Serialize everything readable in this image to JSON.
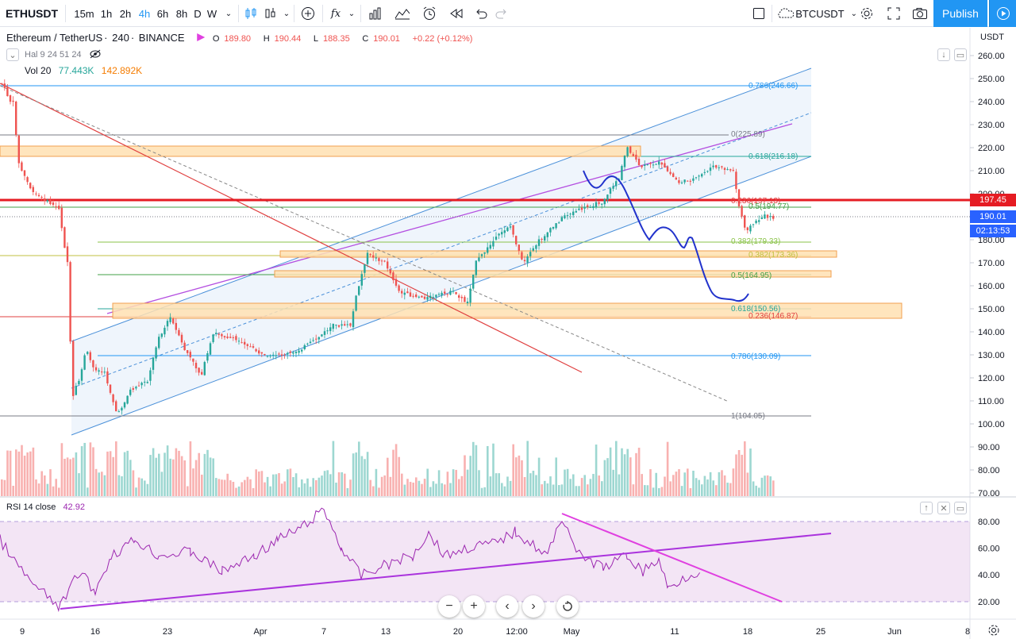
{
  "toolbar": {
    "symbol": "ETHUSDT",
    "intervals": [
      "15m",
      "1h",
      "2h",
      "4h",
      "6h",
      "8h",
      "D",
      "W"
    ],
    "active_interval": "4h",
    "compare_symbol": "BTCUSDT",
    "publish_label": "Publish"
  },
  "legend": {
    "pair": "Ethereum / TetherUS",
    "interval": "240",
    "exchange": "BINANCE",
    "open_label": "O",
    "open": "189.80",
    "high_label": "H",
    "high": "190.44",
    "low_label": "L",
    "low": "188.35",
    "close_label": "C",
    "close": "190.01",
    "change": "+0.22 (+0.12%)",
    "halving": "Hal 9 24 51 24",
    "vol_label": "Vol 20",
    "vol_value": "77.443K",
    "vol_ma": "142.892K",
    "rsi_label": "RSI 14 close",
    "rsi_value": "42.92"
  },
  "price_scale": {
    "currency": "USDT",
    "ticks": [
      "260.00",
      "250.00",
      "240.00",
      "230.00",
      "220.00",
      "210.00",
      "200.00",
      "190.00",
      "180.00",
      "170.00",
      "160.00",
      "150.00",
      "140.00",
      "130.00",
      "120.00",
      "110.00",
      "100.00",
      "90.00",
      "80.00",
      "70.00"
    ],
    "last_price": "190.01",
    "countdown": "02:13:53",
    "alert_price": "197.45"
  },
  "rsi_scale": {
    "ticks": [
      "80.00",
      "60.00",
      "40.00",
      "20.00"
    ]
  },
  "time_scale": {
    "ticks": [
      "9",
      "16",
      "23",
      "Apr",
      "7",
      "13",
      "20",
      "12:00",
      "May",
      "11",
      "18",
      "25",
      "Jun",
      "8"
    ]
  },
  "fib_labels": [
    {
      "text": "0.786(246.66)",
      "color": "#2196f3"
    },
    {
      "text": "0(225.89)",
      "color": "#787b86"
    },
    {
      "text": "0.618(216.18)",
      "color": "#26a69a"
    },
    {
      "text": "0.236(197.13)",
      "color": "#e04040"
    },
    {
      "text": "0.5(194.77)",
      "color": "#43a047"
    },
    {
      "text": "0.382(179.33)",
      "color": "#8bc34a"
    },
    {
      "text": "0.382(173.36)",
      "color": "#c0c040"
    },
    {
      "text": "0.5(164.95)",
      "color": "#43a047"
    },
    {
      "text": "0.618(150.56)",
      "color": "#26a69a"
    },
    {
      "text": "0.236(146.87)",
      "color": "#e04040"
    },
    {
      "text": "0.786(130.09)",
      "color": "#2196f3"
    },
    {
      "text": "1(104.05)",
      "color": "#787b86"
    }
  ],
  "colors": {
    "up": "#26a69a",
    "down": "#ef5350",
    "channel": "#4a90d9",
    "rsi_line": "#9c27b0",
    "alert": "#e51c23",
    "accent": "#2196f3"
  }
}
